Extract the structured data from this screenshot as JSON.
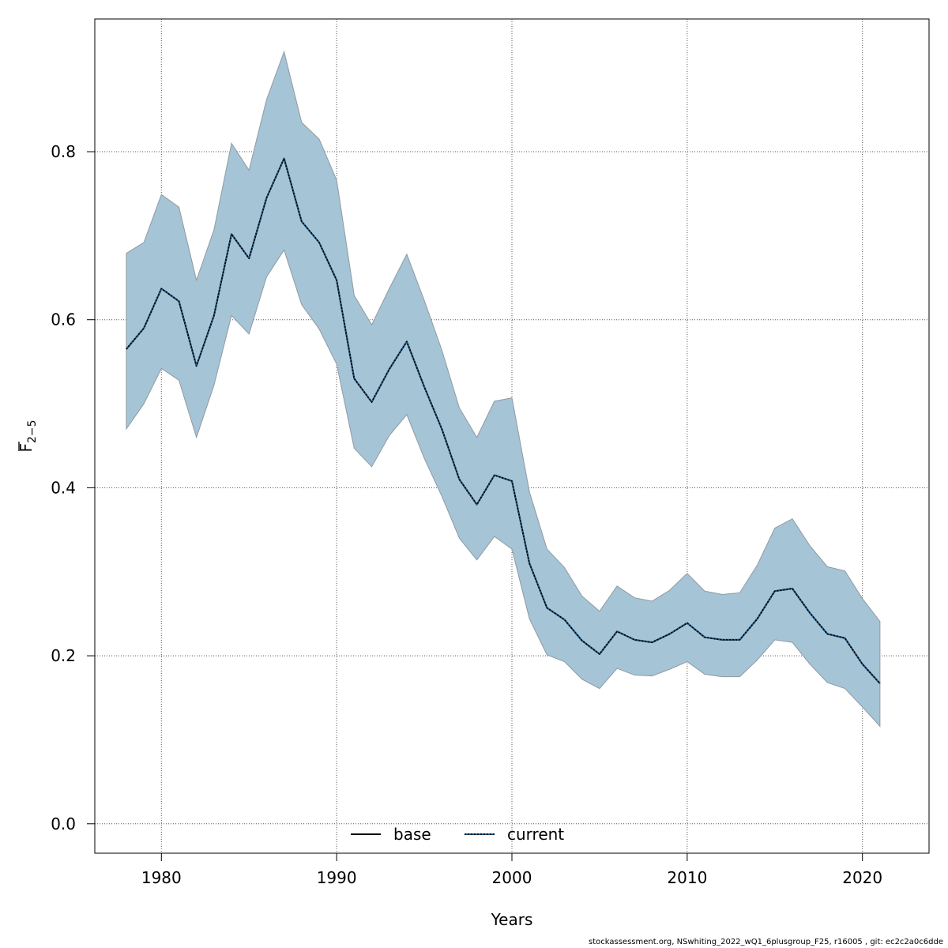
{
  "chart_data": {
    "type": "line",
    "xlabel": "Years",
    "ylabel_main": "F",
    "ylabel_sub": "2−5",
    "xlim": [
      1976.2,
      2023.8
    ],
    "ylim": [
      -0.035,
      0.958
    ],
    "xticks": [
      1980,
      1990,
      2000,
      2010,
      2020
    ],
    "yticks": [
      0.0,
      0.2,
      0.4,
      0.6,
      0.8
    ],
    "ytick_labels": [
      "0.0",
      "0.2",
      "0.4",
      "0.6",
      "0.8"
    ],
    "grid": true,
    "legend": {
      "position": "bottom",
      "entries": [
        {
          "name": "base",
          "style": "solid",
          "color": "#000000"
        },
        {
          "name": "current",
          "style": "dotted",
          "color": "#000000",
          "overlay": "#1f5e8c"
        }
      ]
    },
    "band_color": "#a5c4d6",
    "band_edge": "#8f9aa3",
    "years": [
      1978,
      1979,
      1980,
      1981,
      1982,
      1983,
      1984,
      1985,
      1986,
      1987,
      1988,
      1989,
      1990,
      1991,
      1992,
      1993,
      1994,
      1995,
      1996,
      1997,
      1998,
      1999,
      2000,
      2001,
      2002,
      2003,
      2004,
      2005,
      2006,
      2007,
      2008,
      2009,
      2010,
      2011,
      2012,
      2013,
      2014,
      2015,
      2016,
      2017,
      2018,
      2019,
      2020,
      2021
    ],
    "series": [
      {
        "name": "base",
        "values": [
          0.565,
          0.59,
          0.637,
          0.622,
          0.545,
          0.605,
          0.702,
          0.673,
          0.745,
          0.792,
          0.717,
          0.692,
          0.647,
          0.53,
          0.502,
          0.541,
          0.574,
          0.52,
          0.47,
          0.41,
          0.38,
          0.415,
          0.408,
          0.31,
          0.257,
          0.243,
          0.218,
          0.202,
          0.229,
          0.219,
          0.216,
          0.226,
          0.239,
          0.222,
          0.219,
          0.219,
          0.244,
          0.277,
          0.28,
          0.251,
          0.226,
          0.221,
          0.19,
          0.167
        ]
      },
      {
        "name": "current",
        "values": [
          0.565,
          0.59,
          0.637,
          0.622,
          0.545,
          0.605,
          0.702,
          0.673,
          0.745,
          0.792,
          0.717,
          0.692,
          0.647,
          0.53,
          0.502,
          0.541,
          0.574,
          0.52,
          0.47,
          0.41,
          0.38,
          0.415,
          0.408,
          0.31,
          0.257,
          0.243,
          0.218,
          0.202,
          0.229,
          0.219,
          0.216,
          0.226,
          0.239,
          0.222,
          0.219,
          0.219,
          0.244,
          0.277,
          0.28,
          0.251,
          0.226,
          0.221,
          0.19,
          0.167
        ]
      }
    ],
    "ci_upper": [
      0.679,
      0.692,
      0.749,
      0.734,
      0.647,
      0.707,
      0.81,
      0.778,
      0.862,
      0.919,
      0.835,
      0.815,
      0.766,
      0.629,
      0.594,
      0.637,
      0.678,
      0.623,
      0.564,
      0.495,
      0.46,
      0.503,
      0.507,
      0.395,
      0.327,
      0.305,
      0.271,
      0.253,
      0.283,
      0.269,
      0.265,
      0.278,
      0.298,
      0.277,
      0.273,
      0.275,
      0.308,
      0.352,
      0.363,
      0.331,
      0.306,
      0.301,
      0.268,
      0.241
    ],
    "ci_lower": [
      0.47,
      0.5,
      0.542,
      0.528,
      0.46,
      0.522,
      0.605,
      0.583,
      0.651,
      0.683,
      0.618,
      0.589,
      0.547,
      0.447,
      0.425,
      0.462,
      0.487,
      0.435,
      0.39,
      0.34,
      0.314,
      0.342,
      0.327,
      0.244,
      0.201,
      0.193,
      0.172,
      0.161,
      0.185,
      0.177,
      0.176,
      0.184,
      0.193,
      0.178,
      0.175,
      0.175,
      0.195,
      0.219,
      0.216,
      0.19,
      0.168,
      0.161,
      0.139,
      0.116
    ]
  },
  "footer": "stockassessment.org, NSwhiting_2022_wQ1_6plusgroup_F25, r16005 , git: ec2c2a0c6dde"
}
